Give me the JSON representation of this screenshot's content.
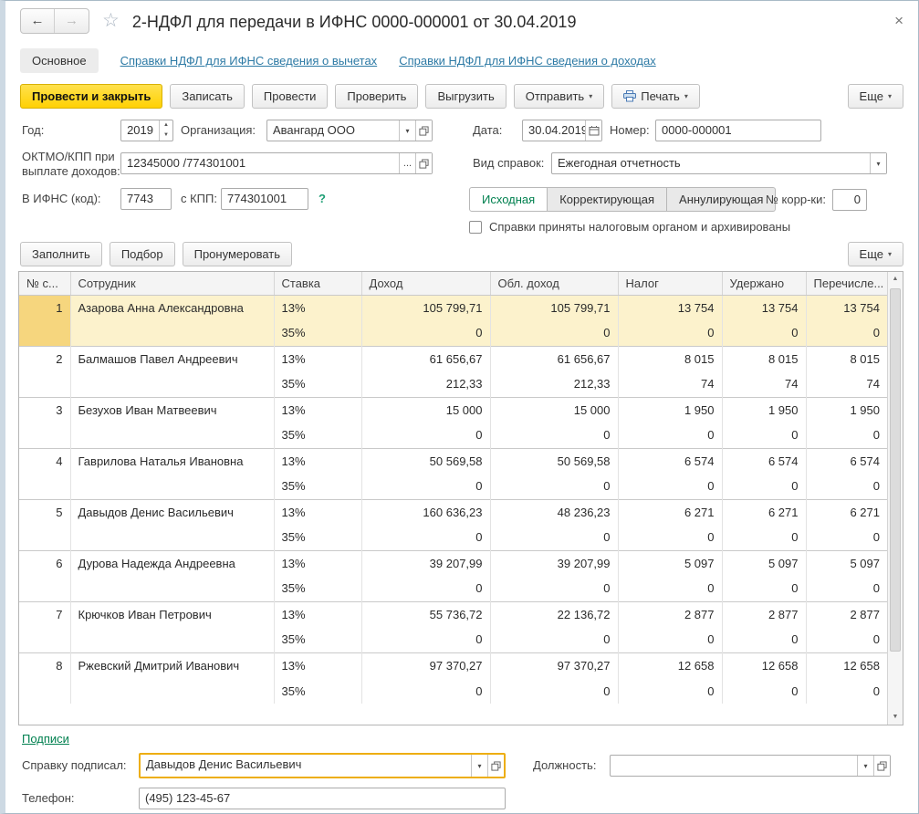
{
  "window": {
    "title": "2-НДФЛ для передачи в ИФНС 0000-000001 от 30.04.2019"
  },
  "icons": {
    "back": "←",
    "forward": "→",
    "star": "☆",
    "close": "×",
    "dropdown": "▾",
    "ellipsis": "...",
    "help": "?",
    "up": "▲",
    "down": "▼",
    "printer": "printer-icon",
    "calendar": "calendar-icon",
    "open": "open-form-icon"
  },
  "tabs": {
    "main_label": "Основное",
    "links": [
      "Справки НДФЛ для ИФНС сведения о вычетах",
      "Справки НДФЛ для ИФНС сведения о доходах"
    ]
  },
  "toolbar": {
    "primary_label": "Провести и закрыть",
    "buttons": [
      "Записать",
      "Провести",
      "Проверить",
      "Выгрузить"
    ],
    "send_label": "Отправить",
    "print_label": "Печать",
    "more_label": "Еще"
  },
  "fields": {
    "year_label": "Год:",
    "year_value": "2019",
    "org_label": "Организация:",
    "org_value": "Авангард ООО",
    "date_label": "Дата:",
    "date_value": "30.04.2019",
    "number_label": "Номер:",
    "number_value": "0000-000001",
    "oktmo_label_line1": "ОКТМО/КПП при",
    "oktmo_label_line2": "выплате доходов:",
    "oktmo_value": "12345000  /774301001",
    "vid_label": "Вид справок:",
    "vid_value": "Ежегодная отчетность",
    "ifns_label": "В ИФНС (код):",
    "ifns_value": "7743",
    "kpp_label": "с КПП:",
    "kpp_value": "774301001",
    "type_options": [
      "Исходная",
      "Корректирующая",
      "Аннулирующая"
    ],
    "active_type": "Исходная",
    "corr_label": "№ корр-ки:",
    "corr_value": "0",
    "archive_checkbox_label": "Справки приняты налоговым органом и архивированы"
  },
  "cmdbar": {
    "buttons": [
      "Заполнить",
      "Подбор",
      "Пронумеровать"
    ],
    "more_label": "Еще"
  },
  "table": {
    "headers": [
      "№ с...",
      "Сотрудник",
      "Ставка",
      "Доход",
      "Обл. доход",
      "Налог",
      "Удержано",
      "Перечисле..."
    ],
    "rows": [
      {
        "num": "1",
        "name": "Азарова Анна Александровна",
        "selected": true,
        "lines": [
          {
            "rate": "13%",
            "income": "105 799,71",
            "taxable": "105 799,71",
            "tax": "13 754",
            "withheld": "13 754",
            "transferred": "13 754"
          },
          {
            "rate": "35%",
            "income": "0",
            "taxable": "0",
            "tax": "0",
            "withheld": "0",
            "transferred": "0"
          }
        ]
      },
      {
        "num": "2",
        "name": "Балмашов Павел Андреевич",
        "selected": false,
        "lines": [
          {
            "rate": "13%",
            "income": "61 656,67",
            "taxable": "61 656,67",
            "tax": "8 015",
            "withheld": "8 015",
            "transferred": "8 015"
          },
          {
            "rate": "35%",
            "income": "212,33",
            "taxable": "212,33",
            "tax": "74",
            "withheld": "74",
            "transferred": "74"
          }
        ]
      },
      {
        "num": "3",
        "name": "Безухов Иван Матвеевич",
        "selected": false,
        "lines": [
          {
            "rate": "13%",
            "income": "15 000",
            "taxable": "15 000",
            "tax": "1 950",
            "withheld": "1 950",
            "transferred": "1 950"
          },
          {
            "rate": "35%",
            "income": "0",
            "taxable": "0",
            "tax": "0",
            "withheld": "0",
            "transferred": "0"
          }
        ]
      },
      {
        "num": "4",
        "name": "Гаврилова Наталья Ивановна",
        "selected": false,
        "lines": [
          {
            "rate": "13%",
            "income": "50 569,58",
            "taxable": "50 569,58",
            "tax": "6 574",
            "withheld": "6 574",
            "transferred": "6 574"
          },
          {
            "rate": "35%",
            "income": "0",
            "taxable": "0",
            "tax": "0",
            "withheld": "0",
            "transferred": "0"
          }
        ]
      },
      {
        "num": "5",
        "name": "Давыдов Денис Васильевич",
        "selected": false,
        "lines": [
          {
            "rate": "13%",
            "income": "160 636,23",
            "taxable": "48 236,23",
            "tax": "6 271",
            "withheld": "6 271",
            "transferred": "6 271"
          },
          {
            "rate": "35%",
            "income": "0",
            "taxable": "0",
            "tax": "0",
            "withheld": "0",
            "transferred": "0"
          }
        ]
      },
      {
        "num": "6",
        "name": "Дурова Надежда Андреевна",
        "selected": false,
        "lines": [
          {
            "rate": "13%",
            "income": "39 207,99",
            "taxable": "39 207,99",
            "tax": "5 097",
            "withheld": "5 097",
            "transferred": "5 097"
          },
          {
            "rate": "35%",
            "income": "0",
            "taxable": "0",
            "tax": "0",
            "withheld": "0",
            "transferred": "0"
          }
        ]
      },
      {
        "num": "7",
        "name": "Крючков Иван Петрович",
        "selected": false,
        "lines": [
          {
            "rate": "13%",
            "income": "55 736,72",
            "taxable": "22 136,72",
            "tax": "2 877",
            "withheld": "2 877",
            "transferred": "2 877"
          },
          {
            "rate": "35%",
            "income": "0",
            "taxable": "0",
            "tax": "0",
            "withheld": "0",
            "transferred": "0"
          }
        ]
      },
      {
        "num": "8",
        "name": "Ржевский Дмитрий Иванович",
        "selected": false,
        "lines": [
          {
            "rate": "13%",
            "income": "97 370,27",
            "taxable": "97 370,27",
            "tax": "12 658",
            "withheld": "12 658",
            "transferred": "12 658"
          },
          {
            "rate": "35%",
            "income": "0",
            "taxable": "0",
            "tax": "0",
            "withheld": "0",
            "transferred": "0"
          }
        ]
      }
    ]
  },
  "footer": {
    "signatures_link": "Подписи",
    "signed_label": "Справку подписал:",
    "signed_value": "Давыдов Денис Васильевич",
    "position_label": "Должность:",
    "position_value": "",
    "phone_label": "Телефон:",
    "phone_value": "(495) 123-45-67"
  },
  "colors": {
    "primary_button": "#FFD103",
    "selected_row": "#FCF2CC",
    "selected_row_number": "#F6D67E",
    "link": "#2D7AA5",
    "green": "#00804F",
    "focus_border": "#EDAE10"
  }
}
